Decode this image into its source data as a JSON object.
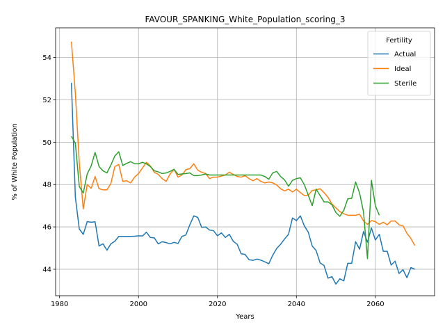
{
  "chart_data": {
    "type": "line",
    "title": "FAVOUR_SPANKING_White_Population_scoring_3",
    "xlabel": "Years",
    "ylabel": "% of White Population",
    "xlim": [
      1979,
      2075
    ],
    "ylim": [
      42.75,
      55.4
    ],
    "xticks": [
      1980,
      2000,
      2020,
      2040,
      2060
    ],
    "yticks": [
      44,
      46,
      48,
      50,
      52,
      54
    ],
    "grid": true,
    "legend": {
      "title": "Fertility",
      "placement": "top-right"
    },
    "series": [
      {
        "name": "Actual",
        "color": "#1f77b4",
        "x": [
          1983,
          1984,
          1985,
          1986,
          1987,
          1988,
          1989,
          1990,
          1991,
          1992,
          1993,
          1994,
          1995,
          1996,
          1997,
          1998,
          1999,
          2000,
          2001,
          2002,
          2003,
          2004,
          2005,
          2006,
          2007,
          2008,
          2009,
          2010,
          2011,
          2012,
          2013,
          2014,
          2015,
          2016,
          2017,
          2018,
          2019,
          2020,
          2021,
          2022,
          2023,
          2024,
          2025,
          2026,
          2027,
          2028,
          2029,
          2030,
          2031,
          2032,
          2033,
          2034,
          2035,
          2036,
          2037,
          2038,
          2039,
          2040,
          2041,
          2042,
          2043,
          2044,
          2045,
          2046,
          2047,
          2048,
          2049,
          2050,
          2051,
          2052,
          2053,
          2054,
          2055,
          2056,
          2057,
          2058,
          2059,
          2060,
          2061,
          2062,
          2063,
          2064,
          2065,
          2066,
          2067,
          2068,
          2069,
          2070
        ],
        "values": [
          52.8,
          47.4,
          45.9,
          45.65,
          46.25,
          46.22,
          46.24,
          45.1,
          45.2,
          44.9,
          45.2,
          45.32,
          45.55,
          45.55,
          45.55,
          45.55,
          45.56,
          45.58,
          45.57,
          45.75,
          45.5,
          45.48,
          45.2,
          45.3,
          45.26,
          45.2,
          45.27,
          45.22,
          45.55,
          45.62,
          46.1,
          46.52,
          46.45,
          45.98,
          46.0,
          45.85,
          45.82,
          45.58,
          45.72,
          45.5,
          45.65,
          45.32,
          45.18,
          44.73,
          44.7,
          44.45,
          44.42,
          44.48,
          44.43,
          44.35,
          44.26,
          44.66,
          44.98,
          45.18,
          45.43,
          45.65,
          46.42,
          46.3,
          46.52,
          46.05,
          45.75,
          45.1,
          44.88,
          44.3,
          44.18,
          43.58,
          43.65,
          43.3,
          43.55,
          43.45,
          44.28,
          44.28,
          45.3,
          44.95,
          45.78,
          45.28,
          45.95,
          45.38,
          45.65,
          44.85,
          44.85,
          44.2,
          44.38,
          43.8,
          43.98,
          43.6,
          44.08,
          44.0
        ]
      },
      {
        "name": "Ideal",
        "color": "#ff7f0e",
        "x": [
          1983,
          1984,
          1985,
          1986,
          1987,
          1988,
          1989,
          1990,
          1991,
          1992,
          1993,
          1994,
          1995,
          1996,
          1997,
          1998,
          1999,
          2000,
          2001,
          2002,
          2003,
          2004,
          2005,
          2006,
          2007,
          2008,
          2009,
          2010,
          2011,
          2012,
          2013,
          2014,
          2015,
          2016,
          2017,
          2018,
          2019,
          2020,
          2021,
          2022,
          2023,
          2024,
          2025,
          2026,
          2027,
          2028,
          2029,
          2030,
          2031,
          2032,
          2033,
          2034,
          2035,
          2036,
          2037,
          2038,
          2039,
          2040,
          2041,
          2042,
          2043,
          2044,
          2045,
          2046,
          2047,
          2048,
          2049,
          2050,
          2051,
          2052,
          2053,
          2054,
          2055,
          2056,
          2057,
          2058,
          2059,
          2060,
          2061,
          2062,
          2063,
          2064,
          2065,
          2066,
          2067,
          2068,
          2069,
          2070
        ],
        "values": [
          54.75,
          52.3,
          49.0,
          46.85,
          48.0,
          47.82,
          48.38,
          47.8,
          47.75,
          47.75,
          48.05,
          48.85,
          48.95,
          48.15,
          48.18,
          48.08,
          48.35,
          48.52,
          48.78,
          49.05,
          48.88,
          48.58,
          48.48,
          48.28,
          48.15,
          48.5,
          48.72,
          48.35,
          48.45,
          48.7,
          48.75,
          48.98,
          48.68,
          48.58,
          48.52,
          48.28,
          48.35,
          48.35,
          48.4,
          48.45,
          48.58,
          48.48,
          48.38,
          48.35,
          48.42,
          48.28,
          48.18,
          48.28,
          48.15,
          48.08,
          48.12,
          48.08,
          47.98,
          47.8,
          47.7,
          47.78,
          47.65,
          47.78,
          47.62,
          47.48,
          47.5,
          47.72,
          47.75,
          47.8,
          47.62,
          47.4,
          47.08,
          46.9,
          46.72,
          46.62,
          46.55,
          46.55,
          46.55,
          46.6,
          46.28,
          46.12,
          46.3,
          46.25,
          46.12,
          46.22,
          46.1,
          46.28,
          46.28,
          46.1,
          46.05,
          45.7,
          45.45,
          45.12
        ]
      },
      {
        "name": "Sterile",
        "color": "#2ca02c",
        "x": [
          1983,
          1984,
          1985,
          1986,
          1987,
          1988,
          1989,
          1990,
          1991,
          1992,
          1993,
          1994,
          1995,
          1996,
          1997,
          1998,
          1999,
          2000,
          2001,
          2002,
          2003,
          2004,
          2005,
          2006,
          2007,
          2008,
          2009,
          2010,
          2011,
          2012,
          2013,
          2014,
          2015,
          2016,
          2017,
          2018,
          2019,
          2020,
          2021,
          2022,
          2023,
          2024,
          2025,
          2026,
          2027,
          2028,
          2029,
          2030,
          2031,
          2032,
          2033,
          2034,
          2035,
          2036,
          2037,
          2038,
          2039,
          2040,
          2041,
          2042,
          2043,
          2044,
          2045,
          2046,
          2047,
          2048,
          2049,
          2050,
          2051,
          2052,
          2053,
          2054,
          2055,
          2056,
          2057,
          2058,
          2059,
          2060,
          2061
        ],
        "values": [
          50.28,
          49.95,
          47.9,
          47.6,
          48.5,
          48.88,
          49.52,
          48.85,
          48.65,
          48.55,
          48.92,
          49.35,
          49.55,
          48.9,
          49.0,
          49.08,
          48.98,
          48.98,
          49.05,
          48.98,
          48.85,
          48.65,
          48.6,
          48.52,
          48.55,
          48.62,
          48.72,
          48.48,
          48.5,
          48.52,
          48.55,
          48.42,
          48.42,
          48.45,
          48.5,
          48.45,
          48.45,
          48.45,
          48.45,
          48.45,
          48.45,
          48.45,
          48.45,
          48.45,
          48.45,
          48.45,
          48.45,
          48.45,
          48.45,
          48.38,
          48.25,
          48.55,
          48.62,
          48.38,
          48.22,
          47.92,
          48.2,
          48.28,
          48.32,
          48.0,
          47.5,
          47.0,
          47.78,
          47.48,
          47.18,
          47.18,
          47.05,
          46.68,
          46.5,
          46.78,
          47.32,
          47.35,
          48.12,
          47.6,
          46.7,
          44.5,
          48.2,
          47.0,
          46.55
        ]
      }
    ]
  }
}
